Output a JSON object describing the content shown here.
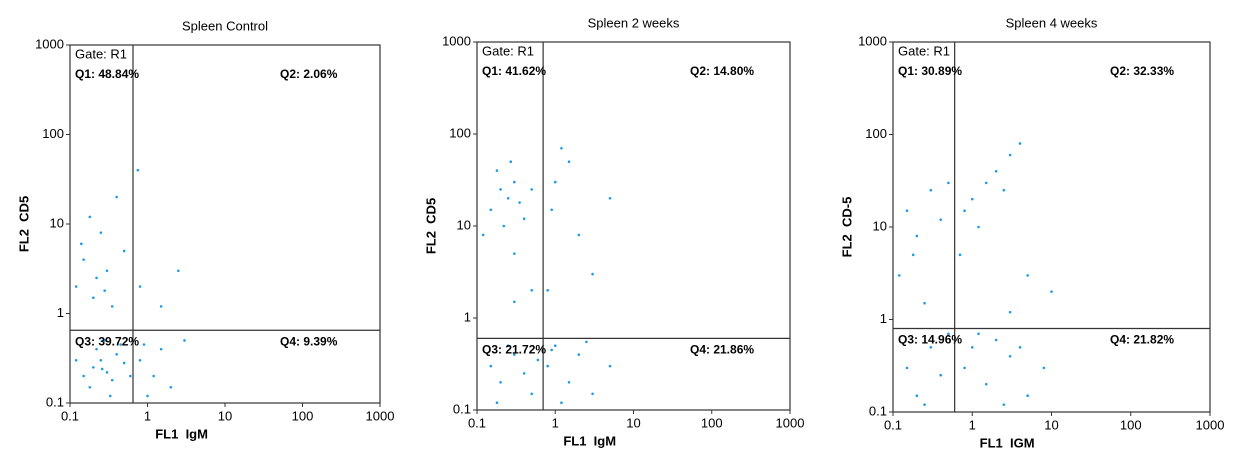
{
  "chart_data": [
    {
      "type": "scatter",
      "title": "Spleen Control",
      "xlabel": "FL1  IgM",
      "ylabel": "FL2  CD5",
      "log_scale": true,
      "color": "#1e9be8",
      "line_color": "#333333",
      "xlim": [
        0.1,
        1000
      ],
      "ylim": [
        0.1,
        1000
      ],
      "xticks": [
        0.1,
        1,
        10,
        100,
        1000
      ],
      "yticks": [
        0.1,
        1,
        10,
        100,
        1000
      ],
      "gate": "Gate: R1",
      "quadrants": [
        "Q1: 48.84%",
        "Q2: 2.06%",
        "Q3: 39.72%",
        "Q4: 9.39%"
      ],
      "gate_x": 0.65,
      "gate_y": 0.65,
      "x": [
        0.15,
        0.2,
        0.25,
        0.3,
        0.35,
        0.22,
        0.4,
        0.5,
        0.18,
        0.28,
        0.33,
        0.12,
        0.45,
        0.6,
        0.26,
        0.12,
        0.15,
        0.2,
        0.25,
        0.3,
        0.18,
        0.35,
        0.14,
        0.4,
        0.22,
        0.5,
        0.28,
        0.8,
        1.2,
        1.5,
        2,
        3,
        1,
        0.9,
        0.8,
        1.5,
        2.5,
        0.75
      ],
      "y": [
        0.2,
        0.25,
        0.3,
        0.22,
        0.18,
        0.4,
        0.35,
        0.28,
        0.15,
        0.5,
        0.12,
        0.3,
        0.45,
        0.2,
        0.24,
        2,
        4,
        1.5,
        8,
        3,
        12,
        1.2,
        6,
        20,
        2.5,
        5,
        1.8,
        0.3,
        0.2,
        0.4,
        0.15,
        0.5,
        0.12,
        0.45,
        2,
        1.2,
        3,
        40
      ]
    },
    {
      "type": "scatter",
      "title": "Spleen 2 weeks",
      "xlabel": "FL1  IgM",
      "ylabel": "FL2  CD5",
      "log_scale": true,
      "color": "#1e9be8",
      "line_color": "#333333",
      "xlim": [
        0.1,
        1000
      ],
      "ylim": [
        0.1,
        1000
      ],
      "xticks": [
        0.1,
        1,
        10,
        100,
        1000
      ],
      "yticks": [
        0.1,
        1,
        10,
        100,
        1000
      ],
      "gate": "Gate: R1",
      "quadrants": [
        "Q1: 41.62%",
        "Q2: 14.80%",
        "Q3: 21.72%",
        "Q4: 21.86%"
      ],
      "gate_x": 0.7,
      "gate_y": 0.6,
      "x": [
        0.15,
        0.2,
        0.25,
        0.3,
        0.22,
        0.35,
        0.18,
        0.4,
        0.27,
        0.12,
        0.5,
        0.3,
        1,
        1.5,
        0.9,
        2,
        1.2,
        3,
        0.8,
        5,
        0.15,
        0.2,
        0.3,
        0.4,
        0.5,
        0.25,
        0.6,
        0.18,
        0.8,
        1,
        1.5,
        2,
        3,
        5,
        1.2,
        0.9,
        2.5,
        0.3,
        0.5
      ],
      "y": [
        15,
        25,
        20,
        30,
        10,
        18,
        40,
        12,
        50,
        8,
        25,
        5,
        30,
        50,
        15,
        8,
        70,
        3,
        2,
        20,
        0.3,
        0.2,
        0.4,
        0.25,
        0.15,
        0.5,
        0.35,
        0.12,
        0.3,
        0.5,
        0.2,
        0.4,
        0.15,
        0.3,
        0.12,
        0.45,
        0.55,
        1.5,
        2
      ]
    },
    {
      "type": "scatter",
      "title": "Spleen 4 weeks",
      "xlabel": "FL1  IGM",
      "ylabel": "FL2  CD-5",
      "log_scale": true,
      "color": "#1e9be8",
      "line_color": "#333333",
      "xlim": [
        0.1,
        1000
      ],
      "ylim": [
        0.1,
        1000
      ],
      "xticks": [
        0.1,
        1,
        10,
        100,
        1000
      ],
      "yticks": [
        0.1,
        1,
        10,
        100,
        1000
      ],
      "gate": "Gate: R1",
      "quadrants": [
        "Q1: 30.89%",
        "Q2: 32.33%",
        "Q3: 14.96%",
        "Q4: 21.82%"
      ],
      "gate_x": 0.6,
      "gate_y": 0.8,
      "x": [
        0.15,
        0.2,
        0.3,
        0.12,
        0.4,
        0.25,
        0.5,
        0.18,
        0.8,
        1,
        1.5,
        2,
        3,
        4,
        1.2,
        2.5,
        0.7,
        5,
        10,
        3,
        0.15,
        0.2,
        0.3,
        0.4,
        0.5,
        0.25,
        0.8,
        1,
        1.5,
        2,
        3,
        5,
        8,
        1.2,
        2.5,
        4
      ],
      "y": [
        15,
        8,
        25,
        3,
        12,
        1.5,
        30,
        5,
        15,
        20,
        30,
        40,
        60,
        80,
        10,
        25,
        5,
        3,
        2,
        1.2,
        0.3,
        0.15,
        0.5,
        0.25,
        0.7,
        0.12,
        0.3,
        0.5,
        0.2,
        0.6,
        0.4,
        0.15,
        0.3,
        0.7,
        0.12,
        0.5
      ]
    }
  ]
}
